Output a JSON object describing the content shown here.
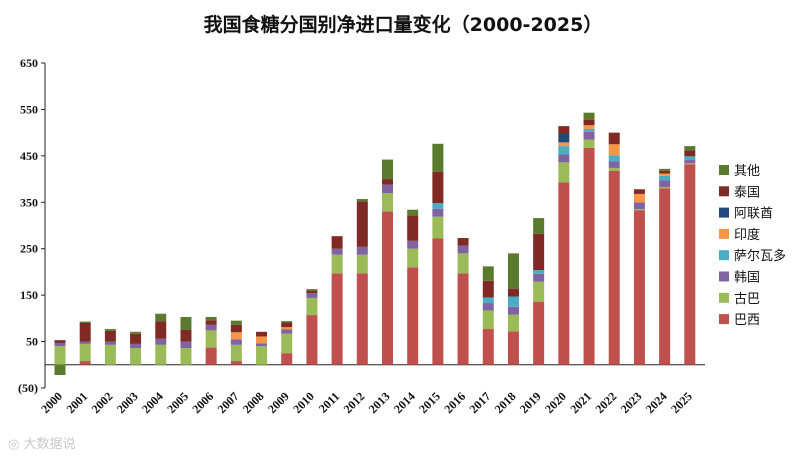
{
  "chart_data": {
    "type": "bar",
    "stacked": true,
    "title": "我国食糖分国别净进口量变化（2000-2025）",
    "categories": [
      "2000",
      "2001",
      "2002",
      "2003",
      "2004",
      "2005",
      "2006",
      "2007",
      "2008",
      "2009",
      "2010",
      "2011",
      "2012",
      "2013",
      "2014",
      "2015",
      "2016",
      "2017",
      "2018",
      "2019",
      "2020",
      "2021",
      "2022",
      "2023",
      "2024",
      "2025"
    ],
    "ylim": [
      -50,
      650
    ],
    "yticks": [
      -50,
      50,
      150,
      250,
      350,
      450,
      550,
      650
    ],
    "ytick_labels": [
      "(50)",
      "50",
      "150",
      "250",
      "350",
      "450",
      "550",
      "650"
    ],
    "grid": false,
    "legend_position": "right",
    "series": [
      {
        "name": "巴西",
        "color": "#C0504D",
        "values": [
          0,
          8,
          0,
          0,
          0,
          0,
          37,
          8,
          0,
          25,
          107,
          197,
          197,
          330,
          210,
          272,
          197,
          77,
          72,
          136,
          393,
          467,
          418,
          333,
          380,
          432
        ]
      },
      {
        "name": "古巴",
        "color": "#9BBB59",
        "values": [
          40,
          37,
          43,
          36,
          43,
          36,
          37,
          35,
          40,
          42,
          37,
          40,
          40,
          40,
          40,
          47,
          43,
          40,
          36,
          43,
          43,
          18,
          6,
          2,
          3,
          2
        ]
      },
      {
        "name": "韩国",
        "color": "#8064A2",
        "values": [
          7,
          5,
          7,
          9,
          13,
          14,
          12,
          12,
          6,
          9,
          10,
          13,
          17,
          18,
          17,
          17,
          17,
          16,
          17,
          17,
          17,
          17,
          14,
          15,
          14,
          7
        ]
      },
      {
        "name": "萨尔瓦多",
        "color": "#4BACC6",
        "values": [
          0,
          0,
          0,
          0,
          0,
          0,
          0,
          0,
          0,
          0,
          0,
          0,
          0,
          0,
          0,
          12,
          0,
          12,
          22,
          8,
          18,
          6,
          13,
          0,
          10,
          8
        ]
      },
      {
        "name": "印度",
        "color": "#F79646",
        "values": [
          0,
          0,
          0,
          0,
          0,
          0,
          0,
          15,
          15,
          5,
          0,
          0,
          0,
          0,
          0,
          0,
          0,
          0,
          0,
          0,
          8,
          8,
          24,
          18,
          5,
          0
        ]
      },
      {
        "name": "阿联酋",
        "color": "#1F497D",
        "values": [
          0,
          0,
          0,
          0,
          0,
          0,
          0,
          0,
          0,
          0,
          0,
          0,
          0,
          0,
          0,
          0,
          0,
          0,
          0,
          0,
          18,
          0,
          0,
          0,
          0,
          0
        ]
      },
      {
        "name": "泰国",
        "color": "#7F2A25",
        "values": [
          6,
          40,
          23,
          22,
          38,
          25,
          10,
          16,
          10,
          10,
          5,
          27,
          98,
          12,
          55,
          68,
          16,
          36,
          17,
          78,
          17,
          12,
          25,
          10,
          6,
          13
        ]
      },
      {
        "name": "其他",
        "color": "#5A7A2E",
        "values": [
          -22,
          3,
          4,
          4,
          16,
          28,
          7,
          9,
          0,
          3,
          4,
          0,
          5,
          42,
          12,
          60,
          0,
          31,
          76,
          34,
          0,
          15,
          0,
          0,
          4,
          9
        ]
      }
    ]
  },
  "watermark": "◎ 大数据说"
}
